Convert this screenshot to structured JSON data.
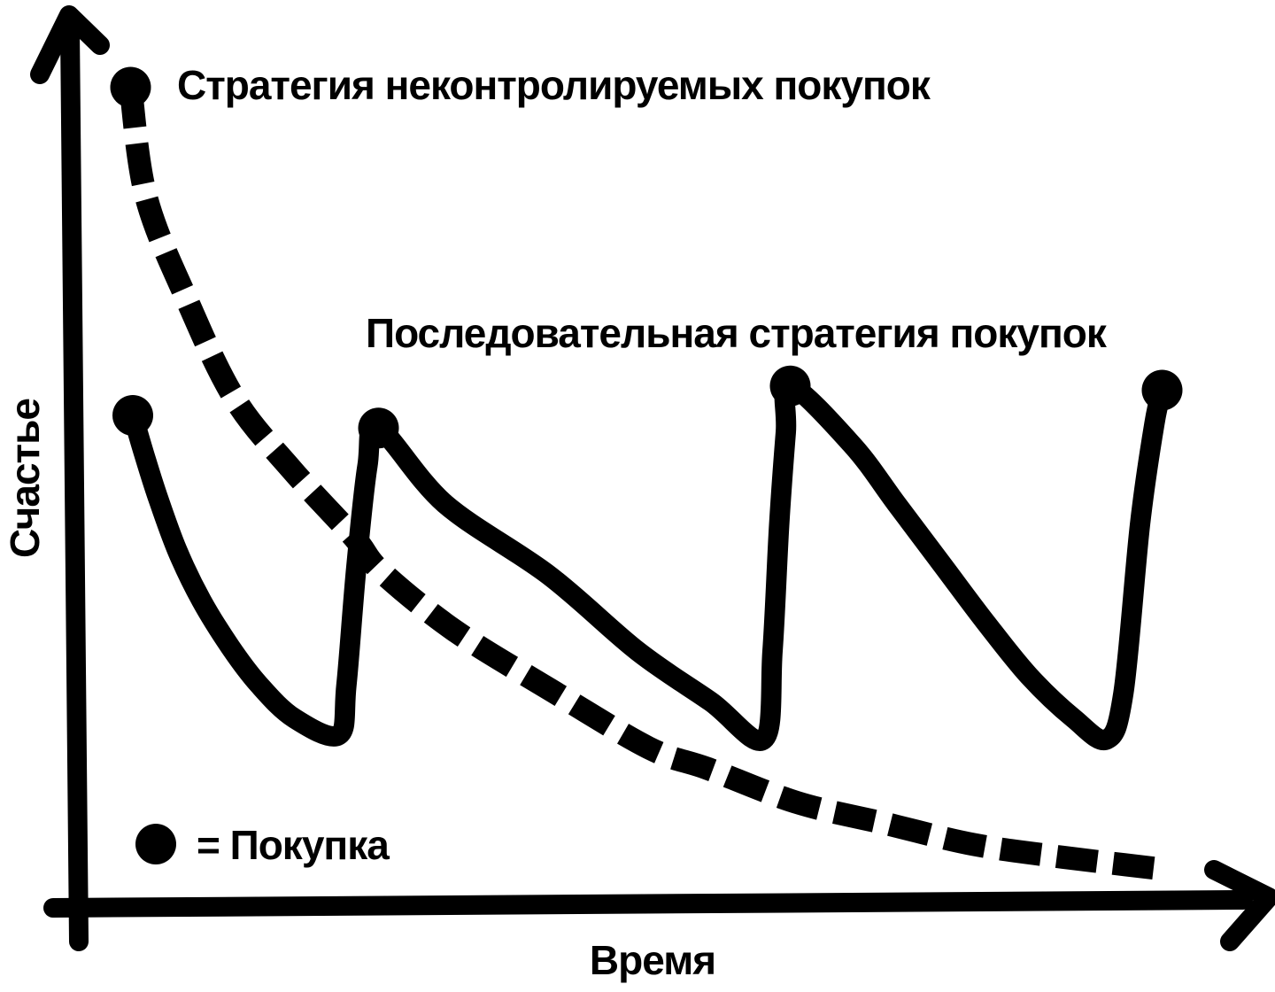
{
  "figure": {
    "background": "#ffffff",
    "ink": "#000000"
  },
  "chart_data": {
    "type": "line",
    "title": "",
    "xlabel": "Время",
    "ylabel": "Счастье",
    "xlim": [
      0,
      100
    ],
    "ylim": [
      0,
      100
    ],
    "grid": false,
    "axis_ticks": "none",
    "legend_position": "bottom-left",
    "series": [
      {
        "name": "Стратегия неконтролируемых покупок",
        "style": "dashed",
        "points": [
          [
            3.8,
            97
          ],
          [
            5.2,
            84
          ],
          [
            8.8,
            72
          ],
          [
            13.2,
            60
          ],
          [
            18.4,
            51.5
          ],
          [
            24,
            43.5
          ],
          [
            26.4,
            39.5
          ],
          [
            33,
            32.5
          ],
          [
            41.6,
            25.5
          ],
          [
            50.6,
            18.5
          ],
          [
            56,
            16
          ],
          [
            64,
            12
          ],
          [
            72,
            9.5
          ],
          [
            80,
            7
          ],
          [
            88,
            5.5
          ],
          [
            97.5,
            4
          ]
        ]
      },
      {
        "name": "Последовательная стратегия покупок",
        "style": "solid",
        "points": [
          [
            4,
            58
          ],
          [
            5,
            53.5
          ],
          [
            6.2,
            48.5
          ],
          [
            8,
            42
          ],
          [
            10.2,
            36
          ],
          [
            12.8,
            30.5
          ],
          [
            15.4,
            26
          ],
          [
            18.6,
            22
          ],
          [
            22.6,
            20
          ],
          [
            23.3,
            26
          ],
          [
            24.2,
            40
          ],
          [
            25.2,
            52
          ],
          [
            26.2,
            56.5
          ],
          [
            32.2,
            47.5
          ],
          [
            41.6,
            39
          ],
          [
            49.6,
            30
          ],
          [
            56.2,
            24
          ],
          [
            61,
            19.5
          ],
          [
            61.8,
            30
          ],
          [
            62.4,
            45
          ],
          [
            63,
            56
          ],
          [
            63.4,
            61.5
          ],
          [
            69,
            54.5
          ],
          [
            73,
            47.5
          ],
          [
            77,
            40.5
          ],
          [
            81,
            33.5
          ],
          [
            85,
            27
          ],
          [
            89,
            22
          ],
          [
            92,
            19.5
          ],
          [
            93.5,
            25
          ],
          [
            95,
            45
          ],
          [
            96.3,
            57
          ],
          [
            97,
            61
          ]
        ]
      }
    ],
    "purchase_markers": {
      "legend_label": "= Покупка",
      "symbol": "filled-circle",
      "marker_radius_px": 23,
      "points": [
        [
          3.8,
          97
        ],
        [
          4,
          58
        ],
        [
          26.2,
          56.5
        ],
        [
          63.4,
          61.5
        ],
        [
          97,
          61
        ]
      ]
    }
  }
}
